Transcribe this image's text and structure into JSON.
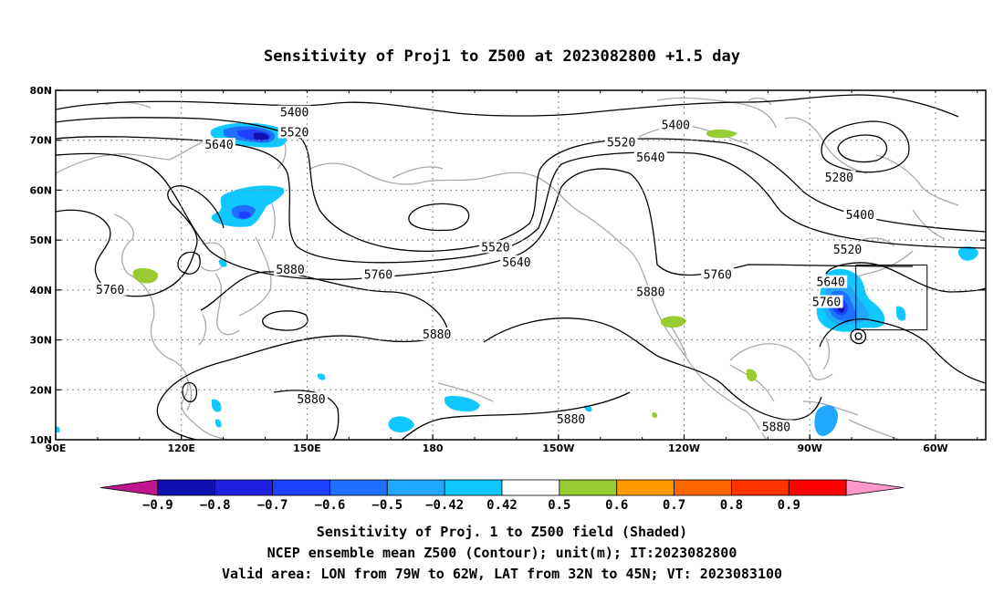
{
  "title": "Sensitivity of Proj1 to Z500 at 2023082800 +1.5 day",
  "map": {
    "lon_ticks": [
      {
        "lon": 90,
        "label": "90E"
      },
      {
        "lon": 120,
        "label": "120E"
      },
      {
        "lon": 150,
        "label": "150E"
      },
      {
        "lon": 180,
        "label": "180"
      },
      {
        "lon": 210,
        "label": "150W"
      },
      {
        "lon": 240,
        "label": "120W"
      },
      {
        "lon": 270,
        "label": "90W"
      },
      {
        "lon": 300,
        "label": "60W"
      }
    ],
    "lat_ticks": [
      {
        "lat": 10,
        "label": "10N"
      },
      {
        "lat": 20,
        "label": "20N"
      },
      {
        "lat": 30,
        "label": "30N"
      },
      {
        "lat": 40,
        "label": "40N"
      },
      {
        "lat": 50,
        "label": "50N"
      },
      {
        "lat": 60,
        "label": "60N"
      },
      {
        "lat": 70,
        "label": "70N"
      },
      {
        "lat": 80,
        "label": "80N"
      }
    ],
    "lon_range": [
      90,
      312
    ],
    "lat_range": [
      10,
      80
    ],
    "grid": true,
    "valid_box": {
      "lon_w": 281,
      "lon_e": 298,
      "lat_s": 32,
      "lat_n": 45
    },
    "contour_labels": [
      {
        "lon": 147,
        "lat": 75.5,
        "text": "5400"
      },
      {
        "lon": 238,
        "lat": 73,
        "text": "5400"
      },
      {
        "lon": 147,
        "lat": 71.5,
        "text": "5520"
      },
      {
        "lon": 225,
        "lat": 69.5,
        "text": "5520"
      },
      {
        "lon": 129,
        "lat": 69,
        "text": "5640"
      },
      {
        "lon": 232,
        "lat": 66.5,
        "text": "5640"
      },
      {
        "lon": 277,
        "lat": 62.5,
        "text": "5280"
      },
      {
        "lon": 282,
        "lat": 55,
        "text": "5400"
      },
      {
        "lon": 279,
        "lat": 48,
        "text": "5520"
      },
      {
        "lon": 275,
        "lat": 41.5,
        "text": "5640"
      },
      {
        "lon": 274,
        "lat": 37.5,
        "text": "5760"
      },
      {
        "lon": 195,
        "lat": 48.5,
        "text": "5520"
      },
      {
        "lon": 200,
        "lat": 45.5,
        "text": "5640"
      },
      {
        "lon": 167,
        "lat": 43,
        "text": "5760"
      },
      {
        "lon": 248,
        "lat": 43,
        "text": "5760"
      },
      {
        "lon": 146,
        "lat": 44,
        "text": "5880"
      },
      {
        "lon": 103,
        "lat": 40,
        "text": "5760"
      },
      {
        "lon": 232,
        "lat": 39.5,
        "text": "5880"
      },
      {
        "lon": 181,
        "lat": 31,
        "text": "5880"
      },
      {
        "lon": 151,
        "lat": 18,
        "text": "5880"
      },
      {
        "lon": 213,
        "lat": 14,
        "text": "5880"
      },
      {
        "lon": 262,
        "lat": 12.5,
        "text": "5880"
      }
    ]
  },
  "colorbar": {
    "colors": [
      "#c0158e",
      "#1010b0",
      "#2020e0",
      "#2040ff",
      "#2070ff",
      "#20a8ff",
      "#10c8ff",
      "#ffffff",
      "#99cc33",
      "#ff9900",
      "#ff6600",
      "#ff3300",
      "#ff0000",
      "#ff99cc"
    ],
    "labels": [
      "-0.9",
      "-0.8",
      "-0.7",
      "-0.6",
      "-0.5",
      "-0.42",
      "0.42",
      "0.5",
      "0.6",
      "0.7",
      "0.8",
      "0.9"
    ]
  },
  "footer": {
    "line1": "Sensitivity of Proj. 1 to Z500 field (Shaded)",
    "line2": "NCEP ensemble mean Z500 (Contour); unit(m); IT:2023082800",
    "line3": "Valid area: LON from 79W to 62W, LAT from 32N to 45N; VT: 2023083100"
  }
}
